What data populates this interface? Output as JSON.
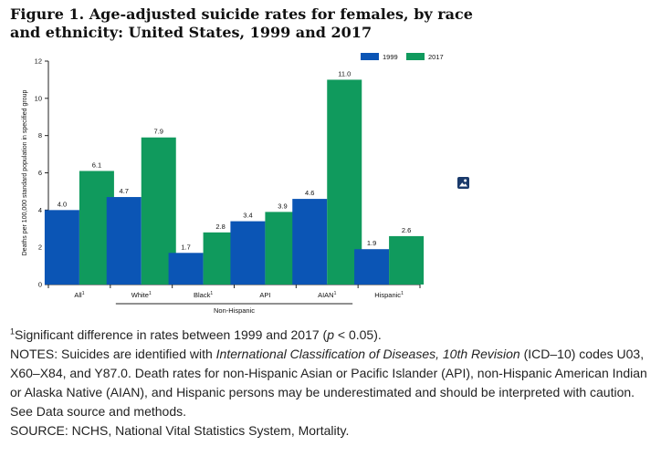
{
  "figure": {
    "title_line1": "Figure 1. Age-adjusted suicide rates for females, by race",
    "title_line2": "and ethnicity: United States, 1999 and 2017"
  },
  "chart_data": {
    "type": "bar",
    "categories": [
      "All",
      "White",
      "Black",
      "API",
      "AIAN",
      "Hispanic"
    ],
    "category_superscripts": [
      "1",
      "1",
      "1",
      "",
      "1",
      "1"
    ],
    "series": [
      {
        "name": "1999",
        "color": "#0b55b5",
        "values": [
          4.0,
          4.7,
          1.7,
          3.4,
          4.6,
          1.9
        ]
      },
      {
        "name": "2017",
        "color": "#109a5d",
        "values": [
          6.1,
          7.9,
          2.8,
          3.9,
          11.0,
          2.6
        ]
      }
    ],
    "data_labels": [
      [
        "4.0",
        "4.7",
        "1.7",
        "3.4",
        "4.6",
        "1.9"
      ],
      [
        "6.1",
        "7.9",
        "2.8",
        "3.9",
        "11.0",
        "2.6"
      ]
    ],
    "ylabel": "Deaths per 100,000 standard population in specified group",
    "xlabel": "",
    "ylim": [
      0,
      12
    ],
    "yticks": [
      0,
      2,
      4,
      6,
      8,
      10,
      12
    ],
    "grid": false,
    "legend_position": "top-right",
    "group_label": "Non-Hispanic"
  },
  "notes": {
    "footnote_marker": "1",
    "footnote_text": "Significant difference in rates between 1999 and 2017 (",
    "footnote_p": "p",
    "footnote_end": " < 0.05).",
    "notes_prefix": "NOTES: Suicides are identified with ",
    "notes_italic": "International Classification of Diseases, 10th Revision",
    "notes_rest": " (ICD–10) codes U03, X60–X84, and Y87.0. Death rates for non-Hispanic Asian or Pacific Islander (API), non-Hispanic American Indian or Alaska Native (AIAN), and Hispanic persons may be underestimated and should be interpreted with caution. See Data source and methods.",
    "source": "SOURCE: NCHS, National Vital Statistics System, Mortality."
  },
  "icons": {
    "image": "image-icon"
  }
}
